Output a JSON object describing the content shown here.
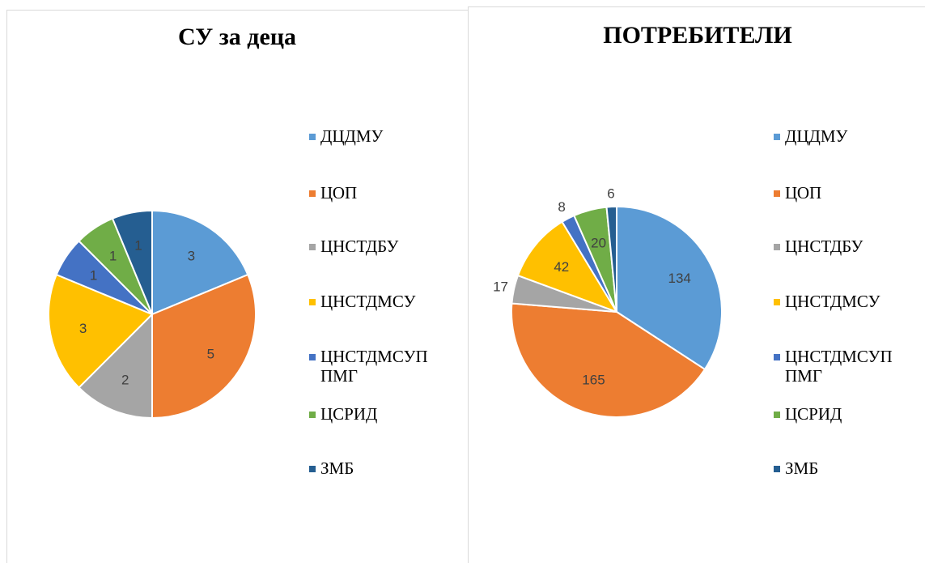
{
  "chart_data": [
    {
      "type": "pie",
      "title": "СУ за деца",
      "categories": [
        "ДЦДМУ",
        "ЦОП",
        "ЦНСТДБУ",
        "ЦНСТДМСУ",
        "ЦНСТДМСУП ПМГ",
        "ЦСРИД",
        "ЗМБ"
      ],
      "values": [
        3,
        5,
        2,
        3,
        1,
        1,
        1
      ],
      "colors": [
        "#5b9bd5",
        "#ed7d31",
        "#a5a5a5",
        "#ffc000",
        "#4472c4",
        "#70ad47",
        "#255e91"
      ],
      "legend": "right"
    },
    {
      "type": "pie",
      "title": "ПОТРЕБИТЕЛИ",
      "categories": [
        "ДЦДМУ",
        "ЦОП",
        "ЦНСТДБУ",
        "ЦНСТДМСУ",
        "ЦНСТДМСУП ПМГ",
        "ЦСРИД",
        "ЗМБ"
      ],
      "values": [
        134,
        165,
        17,
        42,
        8,
        20,
        6
      ],
      "colors": [
        "#5b9bd5",
        "#ed7d31",
        "#a5a5a5",
        "#ffc000",
        "#4472c4",
        "#70ad47",
        "#255e91"
      ],
      "legend": "right"
    }
  ]
}
